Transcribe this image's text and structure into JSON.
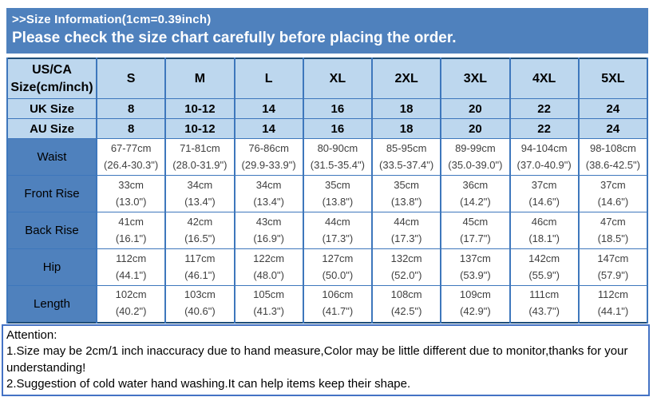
{
  "banner": {
    "title": ">>Size Information(1cm=0.39inch)",
    "subtitle": "Please check the size chart carefully before placing the order."
  },
  "chart_data": {
    "type": "table",
    "title": ">>Size Information(1cm=0.39inch)",
    "header": {
      "corner_line1": "US/CA",
      "corner_line2": "Size(cm/inch)",
      "sizes": [
        "S",
        "M",
        "L",
        "XL",
        "2XL",
        "3XL",
        "4XL",
        "5XL"
      ]
    },
    "size_rows": [
      {
        "label": "UK Size",
        "values": [
          "8",
          "10-12",
          "14",
          "16",
          "18",
          "20",
          "22",
          "24"
        ]
      },
      {
        "label": "AU Size",
        "values": [
          "8",
          "10-12",
          "14",
          "16",
          "18",
          "20",
          "22",
          "24"
        ]
      }
    ],
    "measure_rows": [
      {
        "label": "Waist",
        "cells": [
          {
            "cm": "67-77cm",
            "inch": "(26.4-30.3\")"
          },
          {
            "cm": "71-81cm",
            "inch": "(28.0-31.9\")"
          },
          {
            "cm": "76-86cm",
            "inch": "(29.9-33.9\")"
          },
          {
            "cm": "80-90cm",
            "inch": "(31.5-35.4\")"
          },
          {
            "cm": "85-95cm",
            "inch": "(33.5-37.4\")"
          },
          {
            "cm": "89-99cm",
            "inch": "(35.0-39.0\")"
          },
          {
            "cm": "94-104cm",
            "inch": "(37.0-40.9\")"
          },
          {
            "cm": "98-108cm",
            "inch": "(38.6-42.5\")"
          }
        ]
      },
      {
        "label": "Front Rise",
        "cells": [
          {
            "cm": "33cm",
            "inch": "(13.0\")"
          },
          {
            "cm": "34cm",
            "inch": "(13.4\")"
          },
          {
            "cm": "34cm",
            "inch": "(13.4\")"
          },
          {
            "cm": "35cm",
            "inch": "(13.8\")"
          },
          {
            "cm": "35cm",
            "inch": "(13.8\")"
          },
          {
            "cm": "36cm",
            "inch": "(14.2\")"
          },
          {
            "cm": "37cm",
            "inch": "(14.6\")"
          },
          {
            "cm": "37cm",
            "inch": "(14.6\")"
          }
        ]
      },
      {
        "label": "Back Rise",
        "cells": [
          {
            "cm": "41cm",
            "inch": "(16.1\")"
          },
          {
            "cm": "42cm",
            "inch": "(16.5\")"
          },
          {
            "cm": "43cm",
            "inch": "(16.9\")"
          },
          {
            "cm": "44cm",
            "inch": "(17.3\")"
          },
          {
            "cm": "44cm",
            "inch": "(17.3\")"
          },
          {
            "cm": "45cm",
            "inch": "(17.7\")"
          },
          {
            "cm": "46cm",
            "inch": "(18.1\")"
          },
          {
            "cm": "47cm",
            "inch": "(18.5\")"
          }
        ]
      },
      {
        "label": "Hip",
        "cells": [
          {
            "cm": "112cm",
            "inch": "(44.1\")"
          },
          {
            "cm": "117cm",
            "inch": "(46.1\")"
          },
          {
            "cm": "122cm",
            "inch": "(48.0\")"
          },
          {
            "cm": "127cm",
            "inch": "(50.0\")"
          },
          {
            "cm": "132cm",
            "inch": "(52.0\")"
          },
          {
            "cm": "137cm",
            "inch": "(53.9\")"
          },
          {
            "cm": "142cm",
            "inch": "(55.9\")"
          },
          {
            "cm": "147cm",
            "inch": "(57.9\")"
          }
        ]
      },
      {
        "label": "Length",
        "cells": [
          {
            "cm": "102cm",
            "inch": "(40.2\")"
          },
          {
            "cm": "103cm",
            "inch": "(40.6\")"
          },
          {
            "cm": "105cm",
            "inch": "(41.3\")"
          },
          {
            "cm": "106cm",
            "inch": "(41.7\")"
          },
          {
            "cm": "108cm",
            "inch": "(42.5\")"
          },
          {
            "cm": "109cm",
            "inch": "(42.9\")"
          },
          {
            "cm": "111cm",
            "inch": "(43.7\")"
          },
          {
            "cm": "112cm",
            "inch": "(44.1\")"
          }
        ]
      }
    ]
  },
  "attention": {
    "heading": "Attention:",
    "notes": [
      "1.Size may be 2cm/1 inch inaccuracy due to hand measure,Color may be little different due to monitor,thanks for your understanding!",
      "2.Suggestion of cold water hand washing.It can help items keep their shape."
    ]
  },
  "colors": {
    "banner_blue": "#4F81BD",
    "header_bg": "#BDD7EE",
    "grid_line": "#3E77BC",
    "outer_border": "#1F4E79",
    "attention_border": "#4472C4",
    "data_text": "#3F3F3F"
  }
}
